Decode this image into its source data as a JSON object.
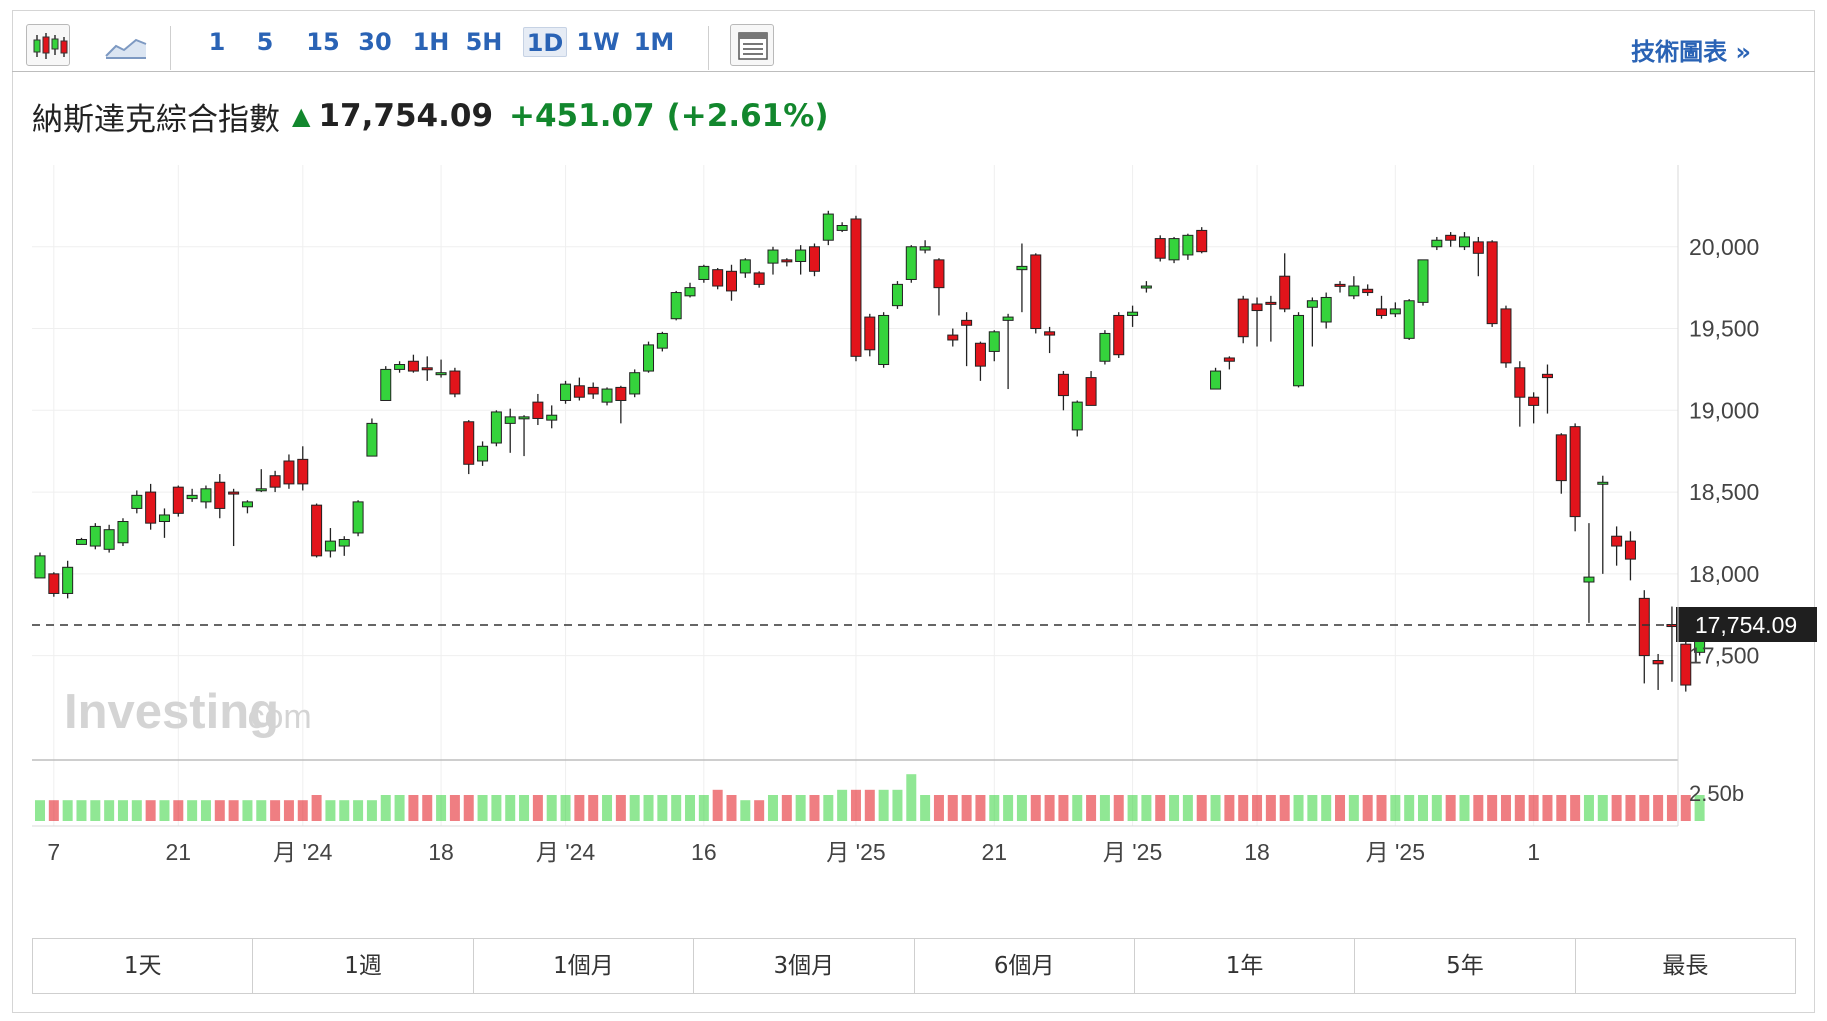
{
  "toolbar": {
    "intervals": [
      "1",
      "5",
      "15",
      "30",
      "1H",
      "5H",
      "1D",
      "1W",
      "1M"
    ],
    "active_interval": "1D",
    "technical_link": "技術圖表 »"
  },
  "quote": {
    "name": "納斯達克綜合指數",
    "price": "17,754.09",
    "change": "+451.07",
    "change_pct": "(+2.61%)"
  },
  "watermark": {
    "main": "Investing",
    "suffix": ".com"
  },
  "price_label": "17,754.09",
  "colors": {
    "up": "#35d33c",
    "down": "#e2141b",
    "up_text": "#12872d",
    "link": "#2a63b5",
    "price_label_bg": "#1f1f1f"
  },
  "range_buttons": [
    "1天",
    "1週",
    "1個月",
    "3個月",
    "6個月",
    "1年",
    "5年",
    "最長"
  ],
  "chart_data": {
    "type": "candlestick",
    "y_ticks": [
      "20,000",
      "19,500",
      "19,000",
      "18,500",
      "18,000",
      "17,500"
    ],
    "y_tick_values": [
      20000,
      19500,
      19000,
      18500,
      18000,
      17500
    ],
    "ylim": [
      16880,
      20500
    ],
    "volume_tick": "2.50b",
    "x_ticks": [
      "7",
      "21",
      "月 '24",
      "18",
      "月 '24",
      "16",
      "月 '25",
      "21",
      "月 '25",
      "18",
      "月 '25",
      "1"
    ],
    "x_tick_index": [
      1,
      10,
      19,
      29,
      38,
      48,
      59,
      69,
      79,
      88,
      98,
      108
    ],
    "last_price": 17754.09,
    "candles": [
      [
        17975,
        18110,
        17975,
        18130,
        "up"
      ],
      [
        18000,
        17880,
        17860,
        18010,
        "down"
      ],
      [
        17880,
        18040,
        17850,
        18080,
        "up"
      ],
      [
        18180,
        18210,
        18180,
        18220,
        "up"
      ],
      [
        18170,
        18290,
        18150,
        18310,
        "up"
      ],
      [
        18150,
        18270,
        18130,
        18300,
        "up"
      ],
      [
        18190,
        18320,
        18170,
        18340,
        "up"
      ],
      [
        18480,
        18400,
        18370,
        18510,
        "up"
      ],
      [
        18500,
        18310,
        18270,
        18550,
        "down"
      ],
      [
        18320,
        18360,
        18220,
        18400,
        "up"
      ],
      [
        18530,
        18370,
        18350,
        18540,
        "down"
      ],
      [
        18480,
        18460,
        18440,
        18520,
        "up"
      ],
      [
        18440,
        18520,
        18400,
        18540,
        "up"
      ],
      [
        18560,
        18400,
        18340,
        18610,
        "down"
      ],
      [
        18500,
        18490,
        18170,
        18520,
        "down"
      ],
      [
        18410,
        18440,
        18370,
        18450,
        "up"
      ],
      [
        18520,
        18520,
        18500,
        18640,
        "up"
      ],
      [
        18600,
        18530,
        18500,
        18630,
        "down"
      ],
      [
        18690,
        18550,
        18520,
        18730,
        "down"
      ],
      [
        18700,
        18550,
        18510,
        18780,
        "down"
      ],
      [
        18420,
        18110,
        18100,
        18430,
        "down"
      ],
      [
        18200,
        18140,
        18100,
        18280,
        "up"
      ],
      [
        18170,
        18210,
        18110,
        18230,
        "up"
      ],
      [
        18250,
        18440,
        18230,
        18450,
        "up"
      ],
      [
        18720,
        18920,
        18720,
        18950,
        "up"
      ],
      [
        19060,
        19250,
        19060,
        19270,
        "up"
      ],
      [
        19250,
        19280,
        19230,
        19300,
        "up"
      ],
      [
        19300,
        19240,
        19230,
        19340,
        "down"
      ],
      [
        19260,
        19260,
        19180,
        19330,
        "down"
      ],
      [
        19220,
        19230,
        19200,
        19310,
        "up"
      ],
      [
        19240,
        19100,
        19080,
        19260,
        "down"
      ],
      [
        18930,
        18670,
        18610,
        18940,
        "down"
      ],
      [
        18690,
        18780,
        18660,
        18810,
        "up"
      ],
      [
        18800,
        18990,
        18780,
        19000,
        "up"
      ],
      [
        18920,
        18960,
        18740,
        19010,
        "up"
      ],
      [
        18960,
        18960,
        18720,
        18970,
        "up"
      ],
      [
        19050,
        18950,
        18910,
        19100,
        "down"
      ],
      [
        18940,
        18970,
        18890,
        19030,
        "up"
      ],
      [
        19060,
        19160,
        19040,
        19180,
        "up"
      ],
      [
        19150,
        19080,
        19060,
        19200,
        "down"
      ],
      [
        19140,
        19100,
        19070,
        19170,
        "down"
      ],
      [
        19050,
        19130,
        19030,
        19140,
        "up"
      ],
      [
        19140,
        19060,
        18920,
        19150,
        "down"
      ],
      [
        19100,
        19230,
        19080,
        19250,
        "up"
      ],
      [
        19240,
        19400,
        19230,
        19420,
        "up"
      ],
      [
        19380,
        19470,
        19360,
        19480,
        "up"
      ],
      [
        19560,
        19720,
        19550,
        19730,
        "up"
      ],
      [
        19700,
        19750,
        19690,
        19780,
        "up"
      ],
      [
        19800,
        19880,
        19780,
        19890,
        "up"
      ],
      [
        19860,
        19760,
        19740,
        19870,
        "down"
      ],
      [
        19850,
        19730,
        19670,
        19890,
        "down"
      ],
      [
        19840,
        19920,
        19810,
        19930,
        "up"
      ],
      [
        19840,
        19770,
        19750,
        19850,
        "down"
      ],
      [
        19900,
        19980,
        19830,
        20000,
        "up"
      ],
      [
        19920,
        19910,
        19880,
        19930,
        "down"
      ],
      [
        19910,
        19980,
        19830,
        20010,
        "up"
      ],
      [
        20000,
        19850,
        19820,
        20020,
        "down"
      ],
      [
        20040,
        20200,
        20010,
        20220,
        "up"
      ],
      [
        20100,
        20130,
        20090,
        20150,
        "up"
      ],
      [
        20170,
        19330,
        19300,
        20190,
        "down"
      ],
      [
        19570,
        19370,
        19330,
        19590,
        "down"
      ],
      [
        19280,
        19580,
        19260,
        19600,
        "up"
      ],
      [
        19640,
        19770,
        19620,
        19790,
        "up"
      ],
      [
        19800,
        20000,
        19780,
        20010,
        "up"
      ],
      [
        20000,
        19980,
        19960,
        20040,
        "up"
      ],
      [
        19920,
        19750,
        19580,
        19930,
        "down"
      ],
      [
        19460,
        19430,
        19390,
        19500,
        "down"
      ],
      [
        19520,
        19550,
        19270,
        19600,
        "down"
      ],
      [
        19410,
        19270,
        19180,
        19420,
        "down"
      ],
      [
        19360,
        19480,
        19300,
        19490,
        "up"
      ],
      [
        19550,
        19570,
        19130,
        19590,
        "up"
      ],
      [
        19860,
        19880,
        19600,
        20020,
        "up"
      ],
      [
        19950,
        19500,
        19470,
        19960,
        "down"
      ],
      [
        19460,
        19480,
        19350,
        19510,
        "down"
      ],
      [
        19220,
        19090,
        19000,
        19240,
        "down"
      ],
      [
        19050,
        18880,
        18840,
        19060,
        "up"
      ],
      [
        19200,
        19030,
        19030,
        19240,
        "down"
      ],
      [
        19300,
        19470,
        19280,
        19490,
        "up"
      ],
      [
        19580,
        19340,
        19320,
        19600,
        "down"
      ],
      [
        19600,
        19580,
        19510,
        19640,
        "up"
      ],
      [
        19750,
        19760,
        19720,
        19790,
        "up"
      ],
      [
        20050,
        19930,
        19910,
        20070,
        "down"
      ],
      [
        19920,
        20050,
        19900,
        20060,
        "up"
      ],
      [
        19950,
        20070,
        19920,
        20080,
        "up"
      ],
      [
        20100,
        19970,
        19960,
        20120,
        "down"
      ],
      [
        19240,
        19130,
        19130,
        19260,
        "up"
      ],
      [
        19300,
        19320,
        19250,
        19330,
        "down"
      ],
      [
        19680,
        19450,
        19410,
        19700,
        "down"
      ],
      [
        19650,
        19610,
        19390,
        19690,
        "down"
      ],
      [
        19660,
        19650,
        19420,
        19700,
        "down"
      ],
      [
        19820,
        19620,
        19600,
        19960,
        "down"
      ],
      [
        19580,
        19150,
        19140,
        19600,
        "up"
      ],
      [
        19630,
        19670,
        19390,
        19690,
        "up"
      ],
      [
        19690,
        19540,
        19500,
        19720,
        "up"
      ],
      [
        19760,
        19770,
        19720,
        19790,
        "down"
      ],
      [
        19760,
        19700,
        19680,
        19820,
        "up"
      ],
      [
        19720,
        19740,
        19700,
        19770,
        "down"
      ],
      [
        19620,
        19580,
        19560,
        19700,
        "down"
      ],
      [
        19590,
        19620,
        19570,
        19660,
        "up"
      ],
      [
        19440,
        19670,
        19430,
        19680,
        "up"
      ],
      [
        19660,
        19920,
        19640,
        19920,
        "up"
      ],
      [
        20040,
        20000,
        19980,
        20060,
        "up"
      ],
      [
        20070,
        20040,
        20000,
        20090,
        "down"
      ],
      [
        20060,
        20000,
        19980,
        20090,
        "up"
      ],
      [
        20030,
        19960,
        19820,
        20060,
        "down"
      ],
      [
        20030,
        19530,
        19510,
        20040,
        "down"
      ],
      [
        19620,
        19290,
        19260,
        19640,
        "down"
      ],
      [
        19260,
        19080,
        18900,
        19300,
        "down"
      ],
      [
        19080,
        19030,
        18920,
        19110,
        "down"
      ],
      [
        19200,
        19220,
        18980,
        19280,
        "down"
      ],
      [
        18850,
        18570,
        18490,
        18860,
        "down"
      ],
      [
        18900,
        18350,
        18260,
        18920,
        "down"
      ],
      [
        17950,
        17980,
        17700,
        18310,
        "up"
      ],
      [
        18560,
        18560,
        18000,
        18600,
        "up"
      ],
      [
        18230,
        18170,
        18050,
        18290,
        "down"
      ],
      [
        18200,
        18090,
        17960,
        18260,
        "down"
      ],
      [
        17850,
        17500,
        17330,
        17900,
        "down"
      ],
      [
        17470,
        17450,
        17290,
        17510,
        "down"
      ],
      [
        17680,
        17690,
        17340,
        17800,
        "down"
      ],
      [
        17570,
        17320,
        17280,
        17600,
        "down"
      ],
      [
        17520,
        17750,
        17500,
        17790,
        "up"
      ]
    ],
    "volume_levels": [
      4,
      4,
      4,
      4,
      4,
      4,
      4,
      4,
      4,
      4,
      4,
      4,
      4,
      4,
      4,
      4,
      4,
      4,
      4,
      4,
      5,
      4,
      4,
      4,
      4,
      5,
      5,
      5,
      5,
      5,
      5,
      5,
      5,
      5,
      5,
      5,
      5,
      5,
      5,
      5,
      5,
      5,
      5,
      5,
      5,
      5,
      5,
      5,
      5,
      6,
      5,
      4,
      4,
      5,
      5,
      5,
      5,
      5,
      6,
      6,
      6,
      6,
      6,
      9,
      5,
      5,
      5,
      5,
      5,
      5,
      5,
      5,
      5,
      5,
      5,
      5,
      5,
      5,
      5,
      5,
      5,
      5,
      5,
      5,
      5,
      5,
      5,
      5,
      5,
      5,
      5,
      5,
      5,
      5,
      5,
      5,
      5,
      5,
      5,
      5,
      5,
      5,
      5,
      5,
      5,
      5,
      5,
      5,
      5,
      5,
      5,
      5,
      5,
      5,
      5,
      5,
      5,
      5,
      5,
      5,
      5
    ]
  }
}
